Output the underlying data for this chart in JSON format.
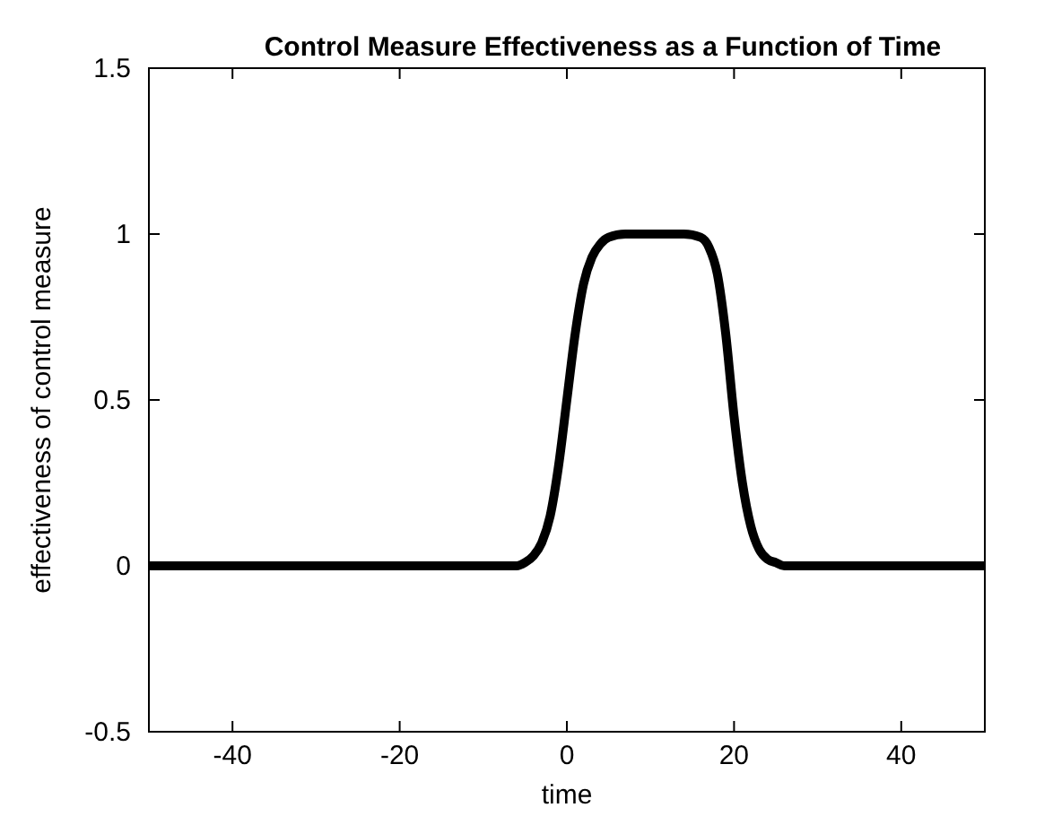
{
  "chart_data": {
    "type": "line",
    "title": "Control Measure Effectiveness as a Function of Time",
    "xlabel": "time",
    "ylabel": "effectiveness of control measure",
    "x": [
      -50,
      -10,
      -6,
      -5,
      -4,
      -3,
      -2,
      -1,
      0,
      1,
      2,
      3,
      4,
      5,
      7,
      10,
      14,
      16,
      17,
      18,
      19,
      20,
      21,
      22,
      23,
      24,
      25,
      26,
      30,
      50
    ],
    "series": [
      {
        "color": "#000000",
        "values": [
          0,
          0,
          0,
          0.01,
          0.03,
          0.07,
          0.15,
          0.3,
          0.5,
          0.7,
          0.85,
          0.93,
          0.97,
          0.99,
          1,
          1,
          1,
          0.99,
          0.96,
          0.88,
          0.7,
          0.45,
          0.25,
          0.12,
          0.05,
          0.02,
          0.01,
          0,
          0,
          0
        ]
      }
    ],
    "xlim": [
      -50,
      50
    ],
    "xticks": [
      -40,
      -20,
      0,
      20,
      40
    ],
    "ylim": [
      -0.5,
      1.5
    ],
    "yticks": [
      -0.5,
      0,
      0.5,
      1,
      1.5
    ],
    "grid": false,
    "line_style": "solid"
  }
}
